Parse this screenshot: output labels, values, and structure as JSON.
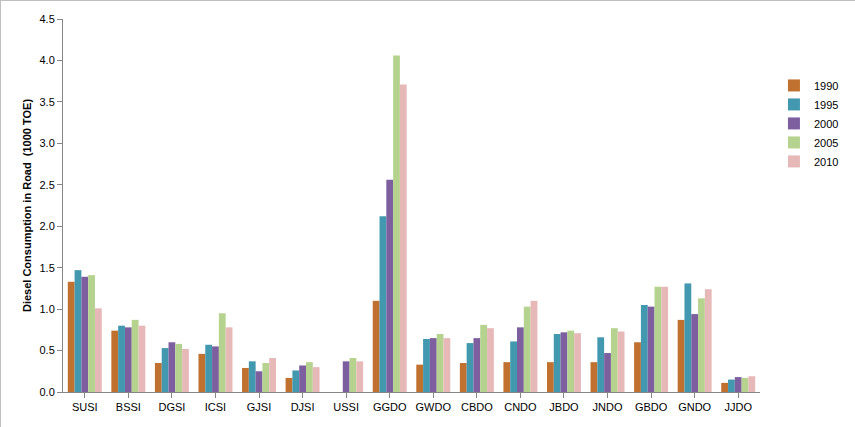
{
  "chart_data": {
    "type": "bar",
    "y_label": "Diesel Consumption in Road  (1000 TOE)",
    "categories": [
      "SUSI",
      "BSSI",
      "DGSI",
      "ICSI",
      "GJSI",
      "DJSI",
      "USSI",
      "GGDO",
      "GWDO",
      "CBDO",
      "CNDO",
      "JBDO",
      "JNDO",
      "GBDO",
      "GNDO",
      "JJDO"
    ],
    "series": [
      {
        "name": "1990",
        "color": "#c0702f",
        "values": [
          1.33,
          0.74,
          0.35,
          0.46,
          0.29,
          0.17,
          null,
          1.1,
          0.33,
          0.35,
          0.36,
          0.36,
          0.36,
          0.6,
          0.87,
          0.11
        ]
      },
      {
        "name": "1995",
        "color": "#4198af",
        "values": [
          1.47,
          0.8,
          0.53,
          0.57,
          0.37,
          0.26,
          null,
          2.12,
          0.64,
          0.59,
          0.61,
          0.7,
          0.66,
          1.05,
          1.31,
          0.15
        ]
      },
      {
        "name": "2000",
        "color": "#7d5fa0",
        "values": [
          1.39,
          0.78,
          0.6,
          0.55,
          0.25,
          0.32,
          0.37,
          2.56,
          0.65,
          0.65,
          0.78,
          0.72,
          0.47,
          1.03,
          0.94,
          0.18
        ]
      },
      {
        "name": "2005",
        "color": "#b5d38e",
        "values": [
          1.41,
          0.87,
          0.58,
          0.95,
          0.35,
          0.36,
          0.41,
          4.06,
          0.7,
          0.81,
          1.03,
          0.74,
          0.77,
          1.27,
          1.13,
          0.17
        ]
      },
      {
        "name": "2010",
        "color": "#e6b9b8",
        "values": [
          1.01,
          0.8,
          0.52,
          0.78,
          0.41,
          0.3,
          0.37,
          3.71,
          0.65,
          0.77,
          1.1,
          0.71,
          0.73,
          1.27,
          1.24,
          0.19
        ]
      }
    ],
    "ylim": [
      0,
      4.5
    ],
    "yticks": [
      {
        "value": 0,
        "label": "0.0"
      },
      0.5,
      {
        "value": 1,
        "label": "1.0"
      },
      1.5,
      {
        "value": 2,
        "label": "2.0"
      },
      2.5,
      {
        "value": 3,
        "label": "3.0"
      },
      3.5,
      {
        "value": 4,
        "label": "4.0"
      },
      4.5
    ],
    "grid": false,
    "legend": "right"
  }
}
